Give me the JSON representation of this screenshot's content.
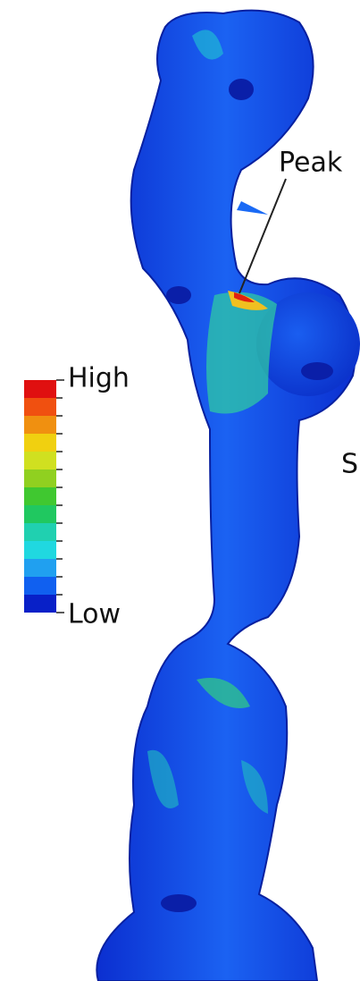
{
  "labels": {
    "peak": "Peak",
    "high": "High",
    "low": "Low",
    "side": "S"
  }
}
